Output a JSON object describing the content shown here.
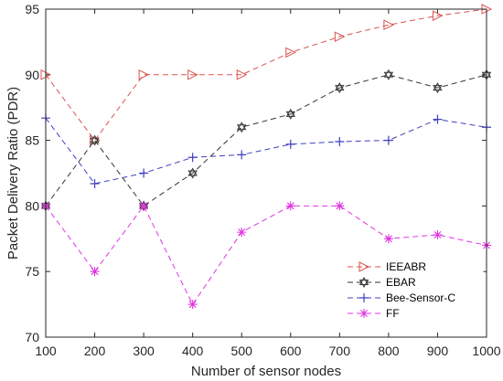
{
  "chart_data": {
    "type": "line",
    "xlabel": "Number of sensor nodes",
    "ylabel": "Packet Delivery Ratio (PDR)",
    "x": [
      100,
      200,
      300,
      400,
      500,
      600,
      700,
      800,
      900,
      1000
    ],
    "xlim": [
      100,
      1000
    ],
    "ylim": [
      70,
      95
    ],
    "xticks": [
      "100",
      "200",
      "300",
      "400",
      "500",
      "600",
      "700",
      "800",
      "900",
      "1000"
    ],
    "yticks": [
      "70",
      "75",
      "80",
      "85",
      "90",
      "95"
    ],
    "grid": false,
    "legend_position": "bottom-right",
    "series": [
      {
        "name": "IEEABR",
        "color": "#d9534f",
        "marker": "triangle-right",
        "values": [
          90,
          85,
          90,
          90,
          90,
          91.7,
          92.9,
          93.8,
          94.5,
          95
        ]
      },
      {
        "name": "EBAR",
        "color": "#333333",
        "marker": "hexagram",
        "values": [
          80,
          85,
          80,
          82.5,
          86,
          87,
          89,
          90,
          89,
          90
        ]
      },
      {
        "name": "Bee-Sensor-C",
        "color": "#3f3fbf",
        "marker": "plus",
        "values": [
          86.7,
          81.7,
          82.5,
          83.7,
          83.9,
          84.7,
          84.9,
          85,
          86.6,
          86
        ]
      },
      {
        "name": "FF",
        "color": "#e033e0",
        "marker": "asterisk",
        "values": [
          80,
          75,
          80,
          72.5,
          78,
          80,
          80,
          77.5,
          77.8,
          77
        ]
      }
    ]
  }
}
